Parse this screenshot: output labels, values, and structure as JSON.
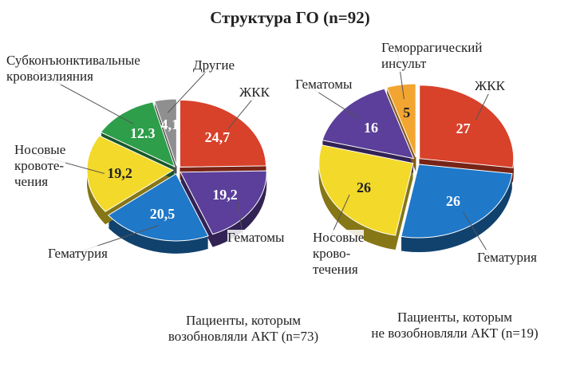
{
  "title": "Структура ГО (n=92)",
  "chart_data": [
    {
      "type": "pie",
      "subtitle": "Пациенты, которым\nвозобновляли АКТ (n=73)",
      "categories": [
        "ЖКК",
        "Гематомы",
        "Гематурия",
        "Носовые\nкровоте-\nчения",
        "Субконъюнктивальные\nкровоизлияния",
        "Другие"
      ],
      "values": [
        24.7,
        19.2,
        20.5,
        19.2,
        12.3,
        4.1
      ],
      "value_labels": [
        "24,7",
        "19,2",
        "20,5",
        "19,2",
        "12.3",
        "4,1"
      ],
      "colors": [
        "#d8412a",
        "#5b3f9a",
        "#1f78c8",
        "#f3d92a",
        "#2e9e4a",
        "#8f8f8f"
      ]
    },
    {
      "type": "pie",
      "subtitle": "Пациенты, которым\nне возобновляли АКТ (n=19)",
      "categories": [
        "ЖКК",
        "Гематурия",
        "Носовые\nкрово-\nтечения",
        "Гематомы",
        "Геморрагический\nинсульт"
      ],
      "values": [
        27,
        26,
        26,
        16,
        5
      ],
      "colors": [
        "#d8412a",
        "#1f78c8",
        "#f3d92a",
        "#5b3f9a",
        "#f2a531"
      ]
    }
  ]
}
